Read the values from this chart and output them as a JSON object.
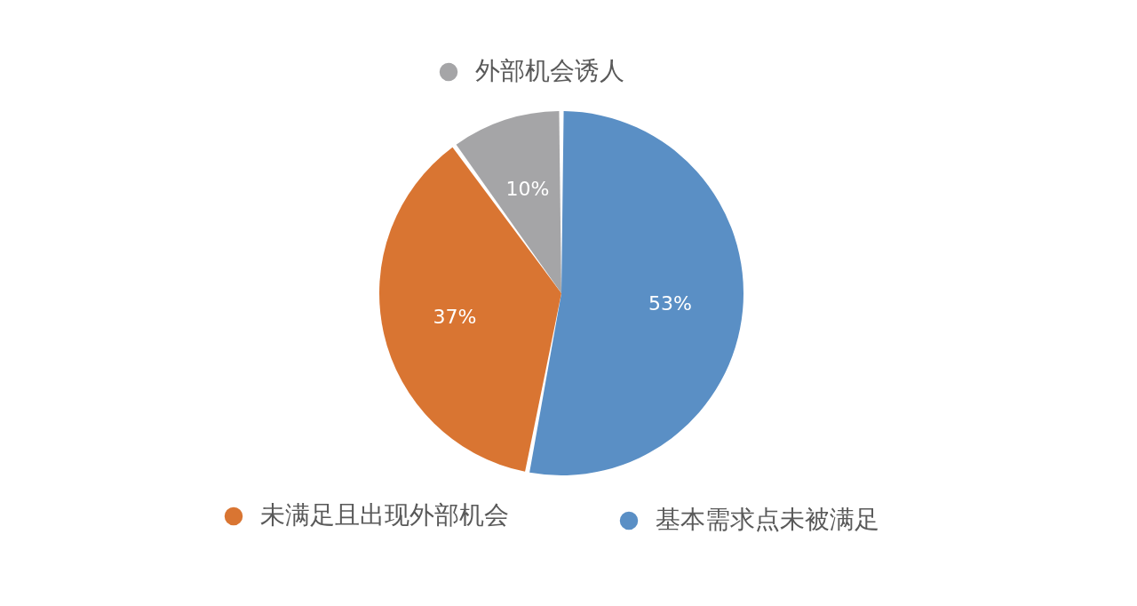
{
  "chart_data": {
    "type": "pie",
    "categories": [
      "基本需求点未被满足",
      "未满足且出现外部机会",
      "外部机会诱人"
    ],
    "values": [
      53,
      37,
      10
    ],
    "colors": [
      "#5a8fc5",
      "#d97532",
      "#a5a5a7"
    ],
    "value_labels": [
      "53%",
      "37%",
      "10%"
    ],
    "legend": "bottom"
  }
}
